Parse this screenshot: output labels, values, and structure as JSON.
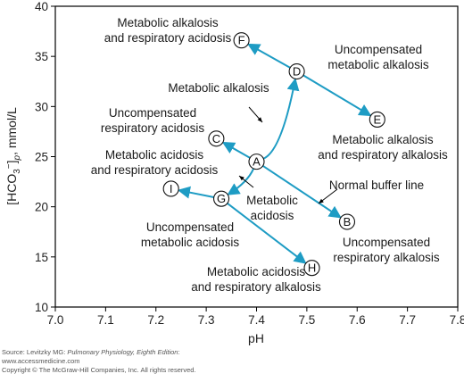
{
  "chart_data": {
    "type": "scatter",
    "xlabel": "pH",
    "ylabel_main": "[HCO",
    "ylabel_sub": "3",
    "ylabel_sup": "−",
    "ylabel_close": "]",
    "ylabel_p": "p",
    "ylabel_unit": ", mmol/L",
    "xlim": [
      7.0,
      7.8
    ],
    "ylim": [
      10,
      40
    ],
    "x_ticks": [
      "7.0",
      "7.1",
      "7.2",
      "7.3",
      "7.4",
      "7.5",
      "7.6",
      "7.7",
      "7.8"
    ],
    "y_ticks": [
      "10",
      "15",
      "20",
      "25",
      "30",
      "35",
      "40"
    ],
    "grid": false,
    "arrow_color": "#1e9cc4",
    "points": [
      {
        "id": "A",
        "x": 7.4,
        "y": 24.5
      },
      {
        "id": "B",
        "x": 7.58,
        "y": 18.5
      },
      {
        "id": "C",
        "x": 7.32,
        "y": 26.8
      },
      {
        "id": "D",
        "x": 7.48,
        "y": 33.5
      },
      {
        "id": "E",
        "x": 7.64,
        "y": 28.7
      },
      {
        "id": "F",
        "x": 7.37,
        "y": 36.6
      },
      {
        "id": "G",
        "x": 7.33,
        "y": 20.8
      },
      {
        "id": "H",
        "x": 7.51,
        "y": 13.9
      },
      {
        "id": "I",
        "x": 7.23,
        "y": 21.8
      }
    ],
    "segments": [
      {
        "from": "A",
        "to": "B",
        "arrow": true
      },
      {
        "from": "A",
        "to": "C",
        "arrow": true
      },
      {
        "from": "A",
        "to": "D",
        "arrow": true,
        "curved": true
      },
      {
        "from": "A",
        "to": "G",
        "arrow": true,
        "curved": true
      },
      {
        "from": "D",
        "to": "E",
        "arrow": true
      },
      {
        "from": "D",
        "to": "F",
        "arrow": true
      },
      {
        "from": "G",
        "to": "H",
        "arrow": true
      },
      {
        "from": "G",
        "to": "I",
        "arrow": true
      }
    ],
    "annotations": [
      {
        "id": "f",
        "lines": [
          "Metabolic alkalosis",
          "and respiratory acidosis"
        ]
      },
      {
        "id": "d",
        "lines": [
          "Uncompensated",
          "metabolic alkalosis"
        ]
      },
      {
        "id": "malk",
        "lines": [
          "Metabolic alkalosis"
        ]
      },
      {
        "id": "c",
        "lines": [
          "Uncompensated",
          "respiratory acidosis"
        ]
      },
      {
        "id": "e",
        "lines": [
          "Metabolic alkalosis",
          "and respiratory alkalosis"
        ]
      },
      {
        "id": "i",
        "lines": [
          "Metabolic acidosis",
          "and respiratory acidosis"
        ]
      },
      {
        "id": "nbl",
        "lines": [
          "Normal buffer line"
        ]
      },
      {
        "id": "macid",
        "lines": [
          "Metabolic",
          "acidosis"
        ]
      },
      {
        "id": "g",
        "lines": [
          "Uncompensated",
          "metabolic acidosis"
        ]
      },
      {
        "id": "b",
        "lines": [
          "Uncompensated",
          "respiratory alkalosis"
        ]
      },
      {
        "id": "h",
        "lines": [
          "Metabolic acidosis",
          "and respiratory alkalosis"
        ]
      }
    ]
  },
  "source": {
    "prefix": "Source: Levitzky MG: ",
    "book": "Pulmonary Physiology, Eighth Edition",
    "suffix": ":",
    "site": "www.accessmedicine.com",
    "copyright": "Copyright © The McGraw-Hill Companies, Inc. All rights reserved."
  }
}
